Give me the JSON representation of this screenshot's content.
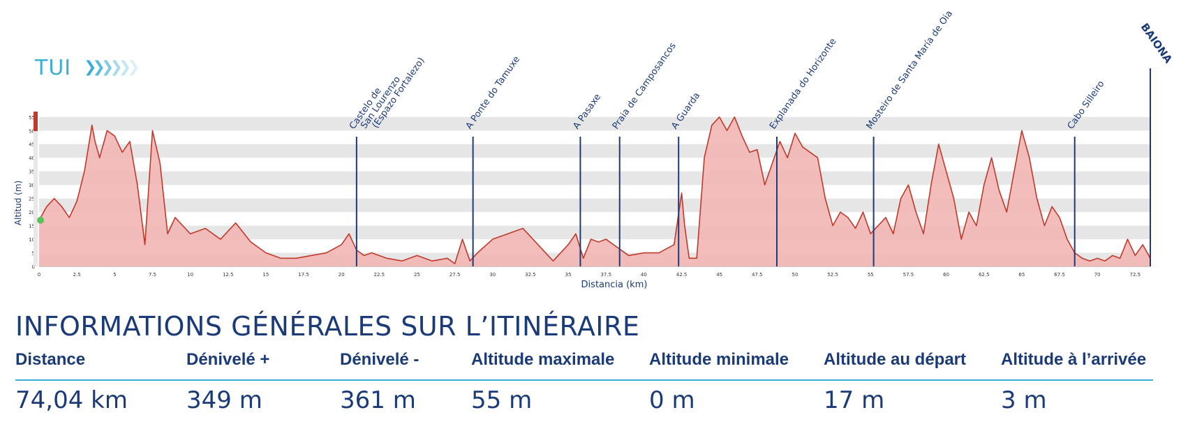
{
  "header": {
    "start_label": "TUI",
    "arrow_glyph": "❯"
  },
  "colors": {
    "navy": "#1b3a78",
    "light_blue": "#3aaed8",
    "profile_line": "#c0392b",
    "profile_fill": "#f2b6b4",
    "band": "#e6e6e6",
    "marker": "#1b3a78",
    "rule": "#3aaed8",
    "axis_bar_top": "#c0392b",
    "start_dot": "#5bc25b"
  },
  "chart_data": {
    "type": "area",
    "title": "",
    "xlabel": "Distancia (km)",
    "ylabel": "Altitud (m)",
    "xlim": [
      0,
      73.5
    ],
    "ylim": [
      0,
      57
    ],
    "x_ticks": [
      "0",
      "2.5",
      "5",
      "7.5",
      "10",
      "12.5",
      "15",
      "17.5",
      "20",
      "22.5",
      "25",
      "27.5",
      "30",
      "32.5",
      "35",
      "37.5",
      "40",
      "42.5",
      "45",
      "47.5",
      "50",
      "52.5",
      "55",
      "57.5",
      "60",
      "62.5",
      "65",
      "67.5",
      "70",
      "72.5"
    ],
    "y_ticks": [
      "0",
      "5",
      "10",
      "15",
      "20",
      "25",
      "30",
      "35",
      "40",
      "45",
      "50",
      "55"
    ],
    "series": [
      {
        "name": "Altitud",
        "x": [
          0,
          0.5,
          1,
          1.5,
          2,
          2.5,
          3,
          3.5,
          3.7,
          4,
          4.5,
          5,
          5.5,
          6,
          6.5,
          7,
          7.5,
          8,
          8.5,
          9,
          9.5,
          10,
          11,
          12,
          13,
          14,
          15,
          16,
          17,
          18,
          19,
          20,
          20.5,
          21,
          21.5,
          22,
          23,
          24,
          25,
          26,
          27,
          27.5,
          28,
          28.5,
          29,
          30,
          31,
          32,
          33,
          34,
          35,
          35.5,
          36,
          36.5,
          37,
          37.5,
          38,
          39,
          40,
          41,
          42,
          42.5,
          42.7,
          43,
          43.5,
          44,
          44.5,
          45,
          45.5,
          46,
          46.5,
          47,
          47.5,
          48,
          48.5,
          49,
          49.5,
          50,
          50.5,
          51,
          51.5,
          52,
          52.5,
          53,
          53.5,
          54,
          54.5,
          55,
          55.5,
          56,
          56.5,
          57,
          57.5,
          58,
          58.5,
          59,
          59.5,
          60,
          60.5,
          61,
          61.5,
          62,
          62.5,
          63,
          63.5,
          64,
          64.5,
          65,
          65.5,
          66,
          66.5,
          67,
          67.5,
          68,
          68.5,
          69,
          69.5,
          70,
          70.5,
          71,
          71.5,
          72,
          72.5,
          73,
          73.5
        ],
        "values": [
          17,
          22,
          25,
          22,
          18,
          24,
          35,
          52,
          46,
          40,
          50,
          48,
          42,
          46,
          30,
          8,
          50,
          38,
          12,
          18,
          15,
          12,
          14,
          10,
          16,
          9,
          5,
          3,
          3,
          4,
          5,
          8,
          12,
          6,
          4,
          5,
          3,
          2,
          4,
          2,
          3,
          1,
          10,
          2,
          5,
          10,
          12,
          14,
          8,
          2,
          8,
          12,
          3,
          10,
          9,
          10,
          8,
          4,
          5,
          5,
          8,
          27,
          15,
          3,
          3,
          40,
          52,
          55,
          50,
          55,
          48,
          42,
          43,
          30,
          38,
          46,
          40,
          49,
          44,
          42,
          40,
          25,
          15,
          20,
          18,
          14,
          20,
          12,
          15,
          18,
          12,
          25,
          30,
          20,
          12,
          30,
          45,
          35,
          25,
          10,
          20,
          15,
          30,
          40,
          28,
          20,
          35,
          50,
          40,
          25,
          15,
          22,
          18,
          10,
          5,
          3,
          2,
          3,
          2,
          4,
          3,
          10,
          4,
          8,
          3
        ]
      }
    ],
    "start_altitude": 17,
    "markers": [
      {
        "km": 21,
        "label": "Castelo de\nSan Lourenzo\n(Espazo Fortalezo)",
        "top": 60
      },
      {
        "km": 28.7,
        "label": "A Ponte do Tamuxe",
        "top": 60
      },
      {
        "km": 35.8,
        "label": "A Pasaxe",
        "top": 60
      },
      {
        "km": 38.4,
        "label": "Praia de Camposancos",
        "top": 60
      },
      {
        "km": 42.3,
        "label": "A Guarda",
        "top": 60
      },
      {
        "km": 48.8,
        "label": "Explanada do Horizonte",
        "top": 60
      },
      {
        "km": 55.2,
        "label": "Mosteiro de Santa María de Oia",
        "top": 60
      },
      {
        "km": 68.5,
        "label": "Cabo Silleiro",
        "top": 60
      },
      {
        "km": 73.5,
        "label": "BAIONA",
        "top": 80
      }
    ]
  },
  "section_title": "INFORMATIONS GÉNÉRALES SUR L’ITINÉRAIRE",
  "stats": [
    {
      "label": "Distance",
      "value": "74,04 km"
    },
    {
      "label": "Dénivelé +",
      "value": "349 m"
    },
    {
      "label": "Dénivelé -",
      "value": "361 m"
    },
    {
      "label": "Altitude maximale",
      "value": "55 m"
    },
    {
      "label": "Altitude minimale",
      "value": "0 m"
    },
    {
      "label": "Altitude au départ",
      "value": "17 m"
    },
    {
      "label": "Altitude à l’arrivée",
      "value": "3 m"
    }
  ]
}
